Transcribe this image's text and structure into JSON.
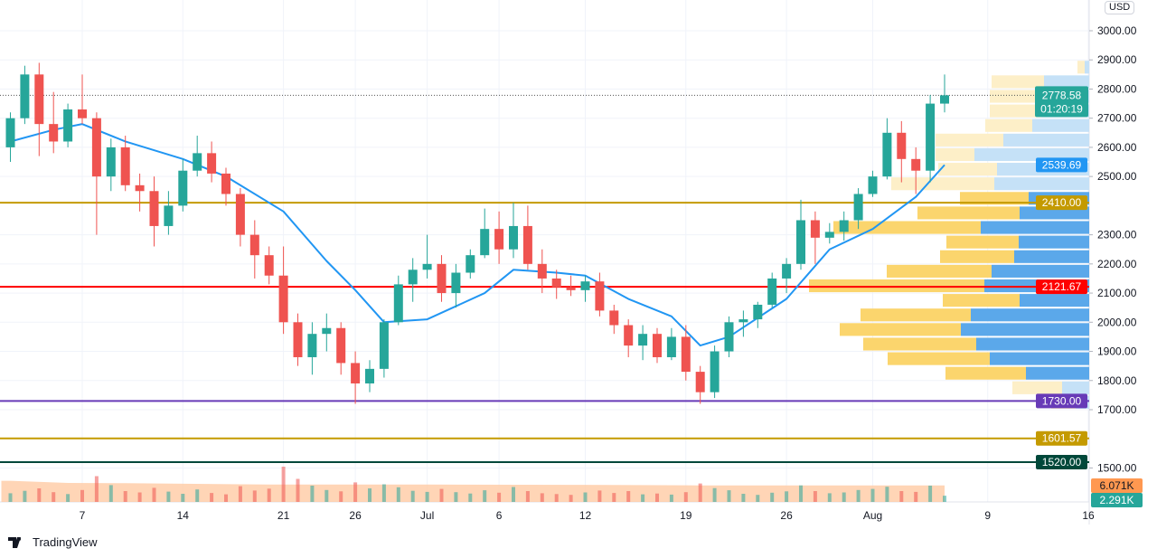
{
  "chart_data": {
    "type": "candlestick",
    "currency": "USD",
    "ylim": [
      1450,
      3050
    ],
    "x_tick_labels": [
      "7",
      "14",
      "21",
      "26",
      "Jul",
      "6",
      "12",
      "19",
      "26",
      "Aug",
      "9",
      "16"
    ],
    "x_tick_dates": [
      "06-07",
      "06-14",
      "06-21",
      "06-26",
      "07-01",
      "07-06",
      "07-12",
      "07-19",
      "07-26",
      "08-01",
      "08-09",
      "08-16"
    ],
    "y_tick_labels": [
      "3000.00",
      "2900.00",
      "2800.00",
      "2700.00",
      "2600.00",
      "2500.00",
      "2300.00",
      "2200.00",
      "2100.00",
      "2000.00",
      "1900.00",
      "1800.00",
      "1700.00",
      "1500.00"
    ],
    "y_tick_values": [
      3000,
      2900,
      2800,
      2700,
      2600,
      2500,
      2300,
      2200,
      2100,
      2000,
      1900,
      1800,
      1700,
      1500
    ],
    "candles": [
      [
        "06-02",
        2600,
        2720,
        2550,
        2700
      ],
      [
        "06-03",
        2700,
        2880,
        2680,
        2850
      ],
      [
        "06-04",
        2850,
        2890,
        2570,
        2680
      ],
      [
        "06-05",
        2680,
        2790,
        2580,
        2620
      ],
      [
        "06-06",
        2620,
        2750,
        2600,
        2730
      ],
      [
        "06-07",
        2730,
        2850,
        2680,
        2700
      ],
      [
        "06-08",
        2700,
        2720,
        2300,
        2500
      ],
      [
        "06-09",
        2500,
        2630,
        2450,
        2600
      ],
      [
        "06-10",
        2600,
        2640,
        2450,
        2470
      ],
      [
        "06-11",
        2470,
        2510,
        2380,
        2450
      ],
      [
        "06-12",
        2450,
        2500,
        2260,
        2330
      ],
      [
        "06-13",
        2330,
        2450,
        2300,
        2400
      ],
      [
        "06-14",
        2400,
        2560,
        2380,
        2520
      ],
      [
        "06-15",
        2520,
        2640,
        2500,
        2580
      ],
      [
        "06-16",
        2580,
        2620,
        2480,
        2510
      ],
      [
        "06-17",
        2510,
        2530,
        2400,
        2440
      ],
      [
        "06-18",
        2440,
        2460,
        2260,
        2300
      ],
      [
        "06-19",
        2300,
        2350,
        2150,
        2230
      ],
      [
        "06-20",
        2230,
        2260,
        2130,
        2160
      ],
      [
        "06-21",
        2160,
        2260,
        1960,
        2000
      ],
      [
        "06-22",
        2000,
        2030,
        1850,
        1880
      ],
      [
        "06-23",
        1880,
        2000,
        1820,
        1960
      ],
      [
        "06-24",
        1960,
        2030,
        1900,
        1980
      ],
      [
        "06-25",
        1980,
        2000,
        1820,
        1860
      ],
      [
        "06-26",
        1860,
        1900,
        1720,
        1790
      ],
      [
        "06-27",
        1790,
        1870,
        1760,
        1840
      ],
      [
        "06-28",
        1840,
        2010,
        1810,
        2000
      ],
      [
        "06-29",
        2000,
        2160,
        1990,
        2130
      ],
      [
        "06-30",
        2130,
        2220,
        2070,
        2180
      ],
      [
        "07-01",
        2180,
        2300,
        2150,
        2200
      ],
      [
        "07-02",
        2200,
        2230,
        2070,
        2100
      ],
      [
        "07-03",
        2100,
        2200,
        2050,
        2170
      ],
      [
        "07-04",
        2170,
        2250,
        2150,
        2230
      ],
      [
        "07-05",
        2230,
        2390,
        2220,
        2320
      ],
      [
        "07-06",
        2320,
        2380,
        2200,
        2250
      ],
      [
        "07-07",
        2250,
        2410,
        2220,
        2330
      ],
      [
        "07-08",
        2330,
        2400,
        2180,
        2200
      ],
      [
        "07-09",
        2200,
        2250,
        2100,
        2150
      ],
      [
        "07-10",
        2150,
        2180,
        2080,
        2120
      ],
      [
        "07-11",
        2120,
        2160,
        2090,
        2110
      ],
      [
        "07-12",
        2110,
        2160,
        2070,
        2140
      ],
      [
        "07-13",
        2140,
        2170,
        2020,
        2040
      ],
      [
        "07-14",
        2040,
        2060,
        1960,
        1990
      ],
      [
        "07-15",
        1990,
        2010,
        1880,
        1920
      ],
      [
        "07-16",
        1920,
        1990,
        1870,
        1960
      ],
      [
        "07-17",
        1960,
        1980,
        1860,
        1880
      ],
      [
        "07-18",
        1880,
        1980,
        1870,
        1950
      ],
      [
        "07-19",
        1950,
        1990,
        1800,
        1830
      ],
      [
        "07-20",
        1830,
        1850,
        1720,
        1760
      ],
      [
        "07-21",
        1760,
        1920,
        1740,
        1900
      ],
      [
        "07-22",
        1900,
        2020,
        1880,
        2000
      ],
      [
        "07-23",
        2000,
        2040,
        1950,
        2010
      ],
      [
        "07-24",
        2010,
        2070,
        1980,
        2060
      ],
      [
        "07-25",
        2060,
        2170,
        2050,
        2150
      ],
      [
        "07-26",
        2150,
        2220,
        2100,
        2200
      ],
      [
        "07-27",
        2200,
        2420,
        2180,
        2350
      ],
      [
        "07-28",
        2350,
        2380,
        2200,
        2290
      ],
      [
        "07-29",
        2290,
        2340,
        2270,
        2310
      ],
      [
        "07-30",
        2310,
        2380,
        2280,
        2350
      ],
      [
        "07-31",
        2350,
        2460,
        2320,
        2440
      ],
      [
        "08-01",
        2440,
        2520,
        2430,
        2500
      ],
      [
        "08-02",
        2500,
        2700,
        2490,
        2650
      ],
      [
        "08-03",
        2650,
        2690,
        2480,
        2560
      ],
      [
        "08-04",
        2560,
        2600,
        2440,
        2520
      ],
      [
        "08-05",
        2520,
        2780,
        2480,
        2750
      ],
      [
        "08-06",
        2750,
        2850,
        2720,
        2778.58
      ]
    ],
    "moving_average": [
      [
        "06-02",
        2620
      ],
      [
        "06-05",
        2660
      ],
      [
        "06-07",
        2680
      ],
      [
        "06-10",
        2620
      ],
      [
        "06-14",
        2560
      ],
      [
        "06-17",
        2500
      ],
      [
        "06-21",
        2380
      ],
      [
        "06-24",
        2210
      ],
      [
        "06-26",
        2110
      ],
      [
        "06-28",
        2000
      ],
      [
        "07-01",
        2010
      ],
      [
        "07-05",
        2100
      ],
      [
        "07-07",
        2180
      ],
      [
        "07-10",
        2170
      ],
      [
        "07-12",
        2160
      ],
      [
        "07-15",
        2080
      ],
      [
        "07-18",
        2020
      ],
      [
        "07-20",
        1920
      ],
      [
        "07-22",
        1950
      ],
      [
        "07-26",
        2080
      ],
      [
        "07-29",
        2250
      ],
      [
        "08-01",
        2320
      ],
      [
        "08-04",
        2430
      ],
      [
        "08-06",
        2539.69
      ]
    ],
    "volume_k": [
      3.2,
      4.1,
      5.0,
      3.6,
      2.9,
      4.4,
      9.5,
      6.2,
      4.0,
      3.5,
      5.2,
      3.8,
      3.0,
      4.6,
      3.3,
      2.8,
      5.8,
      4.2,
      4.9,
      13.0,
      8.5,
      6.0,
      4.4,
      3.9,
      7.2,
      5.0,
      6.5,
      5.4,
      4.1,
      3.7,
      4.8,
      3.6,
      3.1,
      4.3,
      3.4,
      5.5,
      4.0,
      3.2,
      2.9,
      2.6,
      3.5,
      4.2,
      3.3,
      4.0,
      2.8,
      3.1,
      2.7,
      3.6,
      6.8,
      5.1,
      4.3,
      3.0,
      2.6,
      3.4,
      3.9,
      6.1,
      4.0,
      3.2,
      3.5,
      4.4,
      4.8,
      5.6,
      4.0,
      3.7,
      6.0,
      2.291
    ],
    "volume_ma_k": [
      [
        "06-02",
        7.8
      ],
      [
        "06-06",
        7.0
      ],
      [
        "06-10",
        6.9
      ],
      [
        "06-20",
        6.4
      ],
      [
        "07-01",
        6.4
      ],
      [
        "07-12",
        6.3
      ],
      [
        "07-20",
        6.1
      ],
      [
        "08-06",
        6.071
      ]
    ],
    "volume_profile": [
      {
        "price": 2850,
        "up": 5,
        "down": 8,
        "value_area": false
      },
      {
        "price": 2800,
        "up": 50,
        "down": 58,
        "value_area": false
      },
      {
        "price": 2750,
        "up": 53,
        "down": 57,
        "value_area": false
      },
      {
        "price": 2700,
        "up": 53,
        "down": 57,
        "value_area": false
      },
      {
        "price": 2650,
        "up": 63,
        "down": 52,
        "value_area": false
      },
      {
        "price": 2600,
        "up": 95,
        "down": 75,
        "value_area": false
      },
      {
        "price": 2550,
        "up": 127,
        "down": 43,
        "value_area": false
      },
      {
        "price": 2500,
        "up": 102,
        "down": 65,
        "value_area": false
      },
      {
        "price": 2450,
        "up": 105,
        "down": 114,
        "value_area": false
      },
      {
        "price": 2400,
        "up": 67,
        "down": 76,
        "value_area": true
      },
      {
        "price": 2350,
        "up": 77,
        "down": 113,
        "value_area": true
      },
      {
        "price": 2300,
        "up": 120,
        "down": 163,
        "value_area": true
      },
      {
        "price": 2250,
        "up": 78,
        "down": 80,
        "value_area": true
      },
      {
        "price": 2200,
        "up": 83,
        "down": 82,
        "value_area": true
      },
      {
        "price": 2150,
        "up": 108,
        "down": 116,
        "value_area": true
      },
      {
        "price": 2100,
        "up": 116,
        "down": 194,
        "value_area": true
      },
      {
        "price": 2050,
        "up": 77,
        "down": 85,
        "value_area": true
      },
      {
        "price": 2000,
        "up": 131,
        "down": 122,
        "value_area": true
      },
      {
        "price": 1950,
        "up": 142,
        "down": 134,
        "value_area": true
      },
      {
        "price": 1900,
        "up": 125,
        "down": 125,
        "value_area": true
      },
      {
        "price": 1850,
        "up": 110,
        "down": 113,
        "value_area": true
      },
      {
        "price": 1800,
        "up": 70,
        "down": 89,
        "value_area": true
      },
      {
        "price": 1750,
        "up": 30,
        "down": 55,
        "value_area": false
      },
      {
        "price": 1700,
        "up": 15,
        "down": 27,
        "value_area": false
      }
    ],
    "horizontal_lines": [
      {
        "value": 2410.0,
        "label": "2410.00",
        "color": "#c49a00"
      },
      {
        "value": 2121.67,
        "label": "2121.67",
        "color": "#ff0000"
      },
      {
        "value": 1730.0,
        "label": "1730.00",
        "color": "#673ab7"
      },
      {
        "value": 1601.57,
        "label": "1601.57",
        "color": "#c49a00"
      },
      {
        "value": 1520.0,
        "label": "1520.00",
        "color": "#00483a"
      }
    ],
    "last_price": {
      "value": 2778.58,
      "label": "2778.58",
      "countdown": "01:20:19",
      "color": "#26a69a"
    },
    "ma_label": {
      "value": 2539.69,
      "label": "2539.69",
      "color": "#2196f3"
    },
    "volume_labels": [
      {
        "label": "6.071K",
        "color": "#ff9850"
      },
      {
        "label": "2.291K",
        "color": "#26a69a"
      }
    ],
    "colors": {
      "up": "#26a69a",
      "down": "#ef5350",
      "ma": "#2196f3",
      "vp_up": "#5ba8ea",
      "vp_down": "#fbd56d",
      "vp_up_light": "#c5e1f7",
      "vp_down_light": "#fdefc8",
      "volume_ma": "#ffcba4"
    }
  },
  "branding": {
    "logo_text": "TradingView"
  }
}
